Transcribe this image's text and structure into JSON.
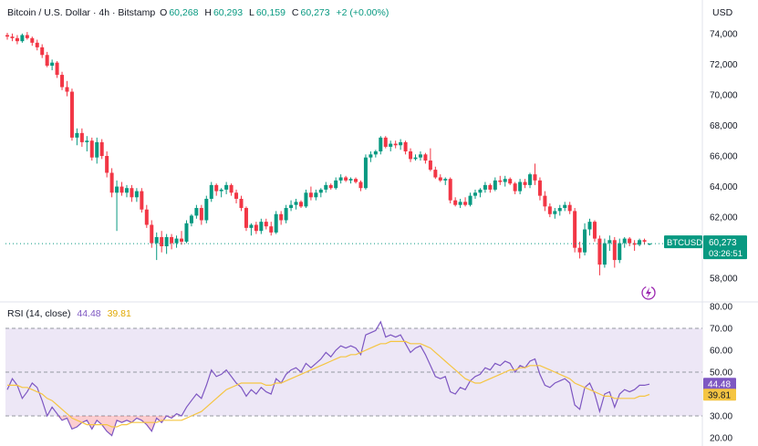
{
  "header": {
    "symbol_desc": "Bitcoin / U.S. Dollar · 4h · Bitstamp",
    "open_label": "O",
    "open": "60,268",
    "high_label": "H",
    "high": "60,293",
    "low_label": "L",
    "low": "60,159",
    "close_label": "C",
    "close": "60,273",
    "change": "+2 (+0.00%)"
  },
  "currency": "USD",
  "price_tag": {
    "symbol": "BTCUSD",
    "price": "60,273",
    "countdown": "03:26:51"
  },
  "rsi_header": {
    "label": "RSI (14, close)",
    "rsi": "44.48",
    "ma": "39.81"
  },
  "colors": {
    "up": "#089981",
    "down": "#f23645",
    "rsi": "#7e57c2",
    "rsi_ma": "#f5c542",
    "band": "#ede7f6"
  },
  "chart_data": [
    {
      "type": "candlestick",
      "title": "Bitcoin / U.S. Dollar · 4h · Bitstamp",
      "ylabel": "USD",
      "ylim": [
        57000,
        75000
      ],
      "yticks": [
        58000,
        60000,
        62000,
        64000,
        66000,
        68000,
        70000,
        72000,
        74000
      ],
      "ytick_labels": [
        "58,000",
        "60,000",
        "62,000",
        "64,000",
        "66,000",
        "68,000",
        "70,000",
        "72,000",
        "74,000"
      ],
      "last_price": 60273,
      "ohlc": [
        [
          73900,
          74050,
          73600,
          73800
        ],
        [
          73800,
          74000,
          73500,
          73700
        ],
        [
          73700,
          73900,
          73300,
          73500
        ],
        [
          73500,
          74000,
          73400,
          73900
        ],
        [
          73900,
          74100,
          73600,
          73700
        ],
        [
          73700,
          73800,
          73200,
          73400
        ],
        [
          73400,
          73600,
          72900,
          73100
        ],
        [
          73100,
          73300,
          72400,
          72600
        ],
        [
          72600,
          72800,
          71800,
          71900
        ],
        [
          71900,
          72300,
          71600,
          72100
        ],
        [
          72100,
          72200,
          71100,
          71300
        ],
        [
          71300,
          71500,
          70300,
          70500
        ],
        [
          70500,
          70900,
          69900,
          70200
        ],
        [
          70200,
          70400,
          67000,
          67200
        ],
        [
          67200,
          67800,
          66700,
          67500
        ],
        [
          67500,
          67800,
          66600,
          66900
        ],
        [
          66900,
          67300,
          66300,
          67000
        ],
        [
          67000,
          67200,
          65700,
          65900
        ],
        [
          65900,
          67200,
          65500,
          66900
        ],
        [
          66900,
          67100,
          65800,
          66000
        ],
        [
          66000,
          66300,
          64600,
          64900
        ],
        [
          64900,
          65200,
          63300,
          63600
        ],
        [
          63600,
          64400,
          61100,
          64000
        ],
        [
          64000,
          64300,
          63400,
          63600
        ],
        [
          63600,
          64100,
          63300,
          63900
        ],
        [
          63900,
          64100,
          63000,
          63300
        ],
        [
          63300,
          63900,
          63000,
          63700
        ],
        [
          63700,
          63900,
          62300,
          62500
        ],
        [
          62500,
          62800,
          61300,
          61500
        ],
        [
          61500,
          61800,
          60000,
          60300
        ],
        [
          60300,
          61000,
          59200,
          60700
        ],
        [
          60700,
          61100,
          59700,
          60100
        ],
        [
          60100,
          60900,
          59600,
          60700
        ],
        [
          60700,
          60900,
          59900,
          60300
        ],
        [
          60300,
          60800,
          60000,
          60600
        ],
        [
          60600,
          61100,
          60200,
          60400
        ],
        [
          60400,
          61800,
          60300,
          61600
        ],
        [
          61600,
          62200,
          61400,
          62100
        ],
        [
          62100,
          62800,
          61900,
          62600
        ],
        [
          62600,
          62800,
          61500,
          61800
        ],
        [
          61800,
          63400,
          61600,
          63200
        ],
        [
          63200,
          64300,
          63000,
          64100
        ],
        [
          64100,
          64200,
          63400,
          63700
        ],
        [
          63700,
          63900,
          63300,
          63800
        ],
        [
          63800,
          64300,
          63500,
          64100
        ],
        [
          64100,
          64200,
          63400,
          63600
        ],
        [
          63600,
          63800,
          62900,
          63200
        ],
        [
          63200,
          63400,
          62400,
          62600
        ],
        [
          62600,
          62700,
          61100,
          61300
        ],
        [
          61300,
          61600,
          60800,
          61500
        ],
        [
          61500,
          61700,
          60900,
          61100
        ],
        [
          61100,
          61900,
          60900,
          61700
        ],
        [
          61700,
          61900,
          61200,
          61400
        ],
        [
          61400,
          61700,
          60800,
          61000
        ],
        [
          61000,
          62400,
          60900,
          62200
        ],
        [
          62200,
          62400,
          61500,
          61800
        ],
        [
          61800,
          62800,
          61600,
          62600
        ],
        [
          62600,
          63100,
          62400,
          62800
        ],
        [
          62800,
          63200,
          62500,
          63000
        ],
        [
          63000,
          63100,
          62600,
          62700
        ],
        [
          62700,
          63800,
          62600,
          63600
        ],
        [
          63600,
          64000,
          63100,
          63300
        ],
        [
          63300,
          63800,
          63100,
          63600
        ],
        [
          63600,
          63900,
          63300,
          63800
        ],
        [
          63800,
          64300,
          63600,
          64100
        ],
        [
          64100,
          64200,
          63800,
          63900
        ],
        [
          63900,
          64600,
          63800,
          64400
        ],
        [
          64400,
          64800,
          64200,
          64600
        ],
        [
          64600,
          64700,
          64300,
          64400
        ],
        [
          64400,
          64600,
          64200,
          64500
        ],
        [
          64500,
          64600,
          64200,
          64300
        ],
        [
          64300,
          64400,
          63700,
          63900
        ],
        [
          63900,
          66100,
          63800,
          65900
        ],
        [
          65900,
          66300,
          65600,
          66100
        ],
        [
          66100,
          66400,
          65900,
          66300
        ],
        [
          66300,
          67300,
          66100,
          67200
        ],
        [
          67200,
          67300,
          66500,
          66600
        ],
        [
          66600,
          67000,
          66300,
          66800
        ],
        [
          66800,
          67000,
          66500,
          66700
        ],
        [
          66700,
          67100,
          66400,
          66900
        ],
        [
          66900,
          67000,
          66100,
          66300
        ],
        [
          66300,
          66500,
          65600,
          65800
        ],
        [
          65800,
          66100,
          65700,
          65900
        ],
        [
          65900,
          66300,
          65700,
          66100
        ],
        [
          66100,
          66200,
          65500,
          65700
        ],
        [
          65700,
          66500,
          65000,
          65100
        ],
        [
          65100,
          65300,
          64500,
          64600
        ],
        [
          64600,
          64800,
          64300,
          64400
        ],
        [
          64400,
          64600,
          64100,
          64500
        ],
        [
          64500,
          64600,
          62900,
          63100
        ],
        [
          63100,
          63300,
          62700,
          62800
        ],
        [
          62800,
          63200,
          62600,
          63000
        ],
        [
          63000,
          63300,
          62700,
          62800
        ],
        [
          62800,
          63600,
          62700,
          63400
        ],
        [
          63400,
          63800,
          63200,
          63600
        ],
        [
          63600,
          63900,
          63300,
          63800
        ],
        [
          63800,
          64300,
          63600,
          64100
        ],
        [
          64100,
          64200,
          63600,
          63800
        ],
        [
          63800,
          64600,
          63700,
          64400
        ],
        [
          64400,
          64700,
          64100,
          64300
        ],
        [
          64300,
          64700,
          64000,
          64500
        ],
        [
          64500,
          64600,
          64100,
          64200
        ],
        [
          64200,
          64300,
          63500,
          63700
        ],
        [
          63700,
          64500,
          63500,
          64300
        ],
        [
          64300,
          64500,
          63900,
          64100
        ],
        [
          64100,
          64900,
          63900,
          64800
        ],
        [
          64800,
          65500,
          64100,
          64400
        ],
        [
          64400,
          64600,
          63100,
          63400
        ],
        [
          63400,
          63700,
          62400,
          62700
        ],
        [
          62700,
          62900,
          62000,
          62200
        ],
        [
          62200,
          62600,
          61900,
          62400
        ],
        [
          62400,
          62800,
          62100,
          62600
        ],
        [
          62600,
          63000,
          62400,
          62800
        ],
        [
          62800,
          63000,
          62200,
          62400
        ],
        [
          62400,
          62600,
          59700,
          60000
        ],
        [
          60000,
          60400,
          59300,
          59700
        ],
        [
          59700,
          61600,
          59500,
          61200
        ],
        [
          61200,
          61900,
          60800,
          61700
        ],
        [
          61700,
          61800,
          60400,
          60600
        ],
        [
          60600,
          60800,
          58200,
          58900
        ],
        [
          58900,
          60600,
          58700,
          60300
        ],
        [
          60300,
          60800,
          59800,
          60500
        ],
        [
          60500,
          60700,
          58700,
          59200
        ],
        [
          59200,
          60600,
          59000,
          60300
        ],
        [
          60300,
          60700,
          60000,
          60600
        ],
        [
          60600,
          60700,
          60100,
          60300
        ],
        [
          60300,
          60500,
          59800,
          60200
        ],
        [
          60200,
          60600,
          60100,
          60500
        ],
        [
          60500,
          60600,
          60200,
          60400
        ],
        [
          60268,
          60293,
          60159,
          60273
        ]
      ]
    },
    {
      "type": "line",
      "title": "RSI (14, close)",
      "ylim": [
        20,
        80
      ],
      "yticks": [
        20,
        30,
        40,
        50,
        60,
        70,
        80
      ],
      "ytick_labels": [
        "20.00",
        "30.00",
        "40.00",
        "50.00",
        "60.00",
        "70.00",
        "80.00"
      ],
      "bands": [
        30,
        50,
        70
      ],
      "last_values": [
        "44.48",
        "39.81"
      ],
      "series": [
        {
          "name": "RSI",
          "values": [
            42,
            47,
            44,
            38,
            41,
            45,
            43,
            37,
            30,
            34,
            31,
            28,
            29,
            24,
            25,
            27,
            28,
            24,
            28,
            26,
            23,
            21,
            28,
            27,
            28,
            27,
            29,
            28,
            26,
            23,
            29,
            27,
            30,
            29,
            31,
            30,
            34,
            37,
            40,
            38,
            44,
            51,
            48,
            49,
            51,
            48,
            45,
            43,
            39,
            42,
            40,
            43,
            41,
            40,
            47,
            45,
            49,
            51,
            52,
            50,
            54,
            52,
            54,
            56,
            59,
            57,
            60,
            62,
            61,
            62,
            61,
            58,
            67,
            68,
            69,
            73,
            66,
            67,
            66,
            67,
            63,
            59,
            61,
            62,
            58,
            53,
            48,
            47,
            48,
            41,
            40,
            43,
            42,
            46,
            48,
            49,
            52,
            51,
            54,
            53,
            55,
            54,
            50,
            53,
            52,
            55,
            56,
            49,
            44,
            43,
            45,
            46,
            47,
            45,
            35,
            33,
            43,
            45,
            40,
            32,
            40,
            41,
            34,
            40,
            42,
            41,
            42,
            44,
            44,
            44.48
          ]
        },
        {
          "name": "RSI-based MA",
          "values": [
            44,
            44,
            44,
            43,
            43,
            42,
            41,
            40,
            38,
            37,
            35,
            33,
            31,
            29,
            28,
            27,
            26,
            26,
            26,
            26,
            26,
            25,
            25,
            26,
            26,
            27,
            27,
            27,
            27,
            27,
            27,
            28,
            28,
            28,
            28,
            28,
            29,
            30,
            31,
            32,
            34,
            36,
            38,
            40,
            42,
            43,
            44,
            45,
            45,
            45,
            45,
            45,
            44,
            44,
            45,
            45,
            46,
            47,
            48,
            49,
            50,
            51,
            52,
            53,
            54,
            55,
            56,
            57,
            57,
            58,
            58,
            59,
            60,
            61,
            62,
            63,
            63,
            64,
            64,
            64,
            64,
            63,
            63,
            63,
            62,
            61,
            59,
            57,
            55,
            53,
            51,
            49,
            47,
            46,
            45,
            45,
            46,
            47,
            48,
            49,
            50,
            51,
            51,
            52,
            52,
            53,
            53,
            53,
            52,
            51,
            50,
            49,
            48,
            47,
            45,
            44,
            43,
            42,
            41,
            40,
            39,
            39,
            38,
            38,
            38,
            38,
            38,
            39,
            39,
            39.81
          ]
        }
      ]
    }
  ]
}
